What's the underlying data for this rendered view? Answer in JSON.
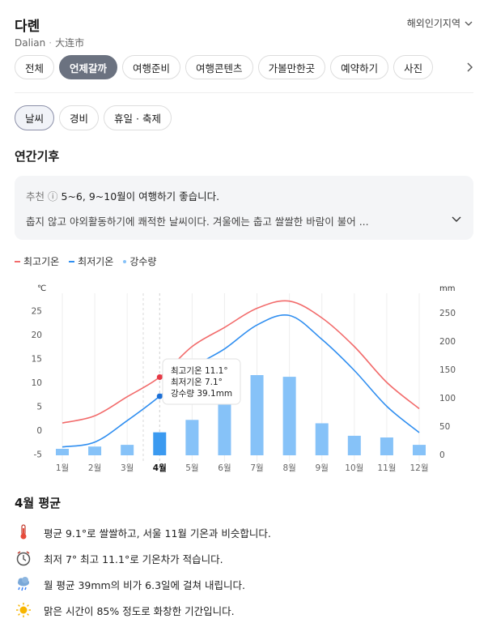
{
  "header": {
    "title": "다롄",
    "subtitle_en": "Dalian",
    "subtitle_sep": "·",
    "subtitle_local": "大连市",
    "region_link": "해외인기지역"
  },
  "tabs": [
    {
      "label": "전체",
      "active": false
    },
    {
      "label": "언제갈까",
      "active": true
    },
    {
      "label": "여행준비",
      "active": false
    },
    {
      "label": "여행콘텐츠",
      "active": false
    },
    {
      "label": "가볼만한곳",
      "active": false
    },
    {
      "label": "예약하기",
      "active": false
    },
    {
      "label": "사진",
      "active": false
    }
  ],
  "chips": [
    {
      "label": "날씨",
      "active": true
    },
    {
      "label": "경비",
      "active": false
    },
    {
      "label": "휴일 · 축제",
      "active": false
    }
  ],
  "section_title": "연간기후",
  "recommend": {
    "label": "추천",
    "info_icon": "ⓘ",
    "text": "5~6, 9~10월이 여행하기 좋습니다.",
    "description": "춥지 않고 야외활동하기에 쾌적한 날씨이다. 겨울에는 춥고 쌀쌀한 바람이 불어 ..."
  },
  "legend": {
    "high": "최고기온",
    "low": "최저기온",
    "rain": "강수량"
  },
  "colors": {
    "high": "#f26b6b",
    "low": "#2f8ef0",
    "rain": "#86c2f8",
    "rain_selected": "#3b9af0",
    "active_tab": "#6b7280"
  },
  "chart_data": {
    "type": "line",
    "categories": [
      "1월",
      "2월",
      "3월",
      "4월",
      "5월",
      "6월",
      "7월",
      "8월",
      "9월",
      "10월",
      "11월",
      "12월"
    ],
    "selected_index": 3,
    "series": [
      {
        "name": "최고기온",
        "values": [
          1.5,
          3.0,
          7.0,
          11.1,
          17.5,
          21.5,
          25.5,
          27.0,
          23.5,
          17.5,
          10.0,
          4.5
        ]
      },
      {
        "name": "최저기온",
        "values": [
          -3.5,
          -2.5,
          2.0,
          7.1,
          13.0,
          17.0,
          22.0,
          24.0,
          19.0,
          12.5,
          5.0,
          -0.5
        ]
      },
      {
        "name": "강수량",
        "values": [
          10,
          14,
          17,
          39.1,
          61,
          91,
          140,
          137,
          55,
          33,
          30,
          17
        ]
      }
    ],
    "y_left": {
      "unit": "℃",
      "ticks": [
        25,
        20,
        15,
        10,
        5,
        0,
        -5
      ],
      "range": [
        -5,
        25
      ]
    },
    "y_right": {
      "unit": "mm",
      "ticks": [
        250,
        200,
        150,
        100,
        50,
        0
      ],
      "range": [
        0,
        250
      ]
    },
    "tooltip": {
      "high": "최고기온 11.1°",
      "low": "최저기온 7.1°",
      "rain": "강수량 39.1mm"
    }
  },
  "average": {
    "title": "4월 평균",
    "facts": [
      {
        "icon": "thermometer-icon",
        "text": "평균 9.1°로 쌀쌀하고, 서울 11월 기온과 비슷합니다."
      },
      {
        "icon": "clock-icon",
        "text": "최저 7° 최고 11.1°로 기온차가 적습니다."
      },
      {
        "icon": "rain-cloud-icon",
        "text": "월 평균 39mm의 비가 6.3일에 걸쳐 내립니다."
      },
      {
        "icon": "sun-icon",
        "text": "맑은 시간이 85% 정도로 화창한 기간입니다."
      }
    ]
  }
}
